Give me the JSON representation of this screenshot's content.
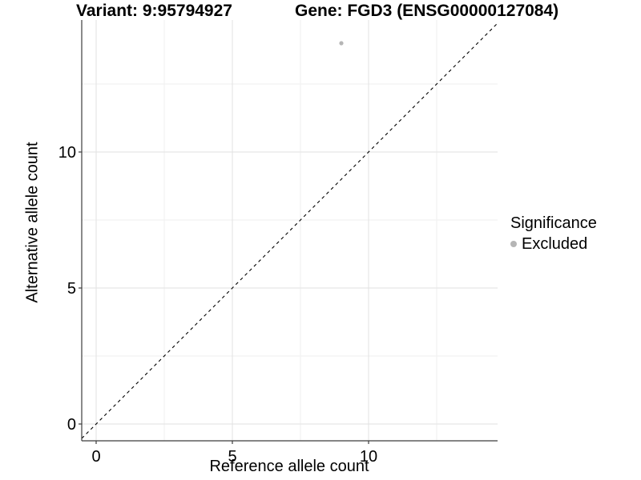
{
  "chart_data": {
    "type": "scatter",
    "title": "Variant: 9:95794927   Gene: FGD3 (ENSG00000127084)",
    "title_parts": [
      "Variant: 9:95794927",
      "Gene: FGD3 (ENSG00000127084)"
    ],
    "xlabel": "Reference allele count",
    "ylabel": "Alternative allele count",
    "xlim": [
      -0.53,
      14.74
    ],
    "ylim": [
      -0.62,
      14.85
    ],
    "x_ticks": [
      0,
      5,
      10
    ],
    "y_ticks": [
      0,
      5,
      10
    ],
    "x_minor_ticks": [
      2.5,
      7.5,
      12.5
    ],
    "y_minor_ticks": [
      2.5,
      7.5,
      12.5
    ],
    "grid": "major+minor",
    "series": [
      {
        "name": "Excluded",
        "color": "#b5b5b5",
        "points": [
          {
            "x": 9,
            "y": 14
          }
        ]
      }
    ],
    "reference_line": {
      "label": "identity",
      "slope": 1,
      "intercept": 0,
      "style": "dashed",
      "color": "#000000"
    },
    "legend": {
      "title": "Significance",
      "position": "right",
      "items": [
        {
          "label": "Excluded",
          "color": "#b5b5b5"
        }
      ]
    },
    "colors": {
      "axis_line": "#3c3c3c",
      "grid_major": "#e2e2e2",
      "grid_minor": "#efefef",
      "point": "#b5b5b5",
      "text": "#000000"
    }
  }
}
